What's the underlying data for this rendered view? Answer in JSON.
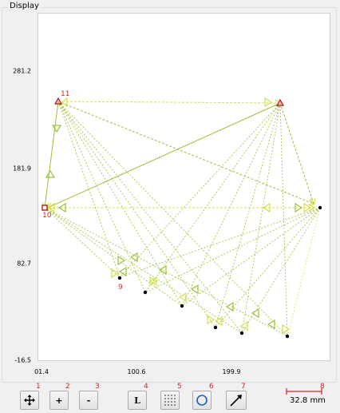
{
  "panel": {
    "title": "Display"
  },
  "axes": {
    "y_ticks": [
      "281.2",
      "181.9",
      "82.7",
      "-16.5"
    ],
    "x_ticks": [
      "01.4",
      "100.6",
      "199.9"
    ]
  },
  "point_labels": {
    "p10": "10",
    "p11": "11",
    "p9": "9"
  },
  "toolbar": {
    "pan_icon": "move-arrows-icon",
    "zoom_in_label": "+",
    "zoom_out_label": "-",
    "label_toggle": "L",
    "grid_icon": "grid-dots-icon",
    "circle_icon": "circle-icon",
    "arrow_icon": "arrow-icon",
    "numbers": [
      "1",
      "2",
      "3",
      "4",
      "5",
      "6",
      "7",
      "8"
    ]
  },
  "scale": {
    "text": "32.8 mm"
  },
  "colors": {
    "triangle_a": "#d7e04a",
    "triangle_b": "#9cc13a",
    "marker_red": "#b01818",
    "label_red": "#e02020"
  }
}
